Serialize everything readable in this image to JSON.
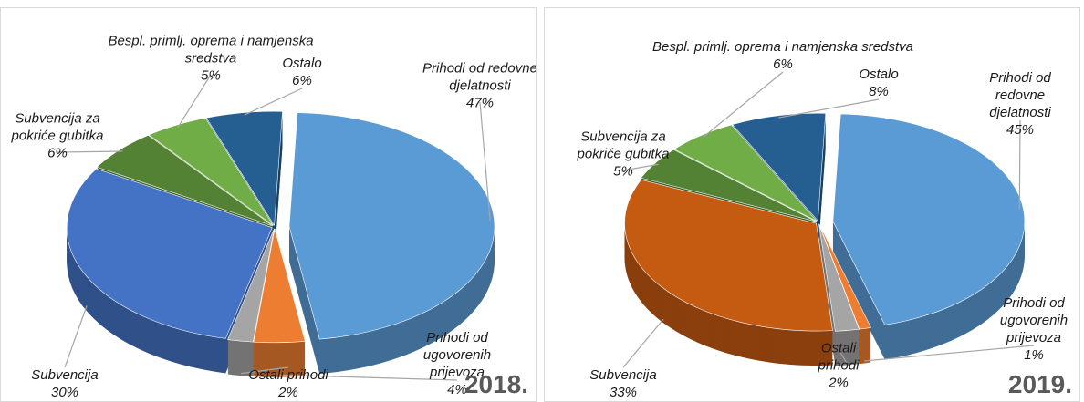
{
  "chart_data": [
    {
      "type": "pie",
      "annotation": "2018.",
      "categories": [
        "Prihodi od redovne djelatnosti",
        "Prihodi od ugovorenih prijevoza",
        "Ostali prihodi",
        "Subvencija",
        "Subvencija za pokriće gubitka",
        "Bespl. primlj. oprema i namjenska sredstva",
        "Ostalo"
      ],
      "values": [
        47,
        4,
        2,
        30,
        6,
        5,
        6
      ],
      "value_labels": [
        "47%",
        "4%",
        "2%",
        "30%",
        "6%",
        "5%",
        "6%"
      ],
      "colors": [
        "#5b9bd5",
        "#ed7d31",
        "#a5a5a5",
        "#4472c4",
        "#548235",
        "#70ad47",
        "#255e91"
      ]
    },
    {
      "type": "pie",
      "annotation": "2019.",
      "categories": [
        "Prihodi od redovne djelatnosti",
        "Prihodi od ugovorenih prijevoza",
        "Ostali prihodi",
        "Subvencija",
        "Subvencija za pokriće gubitka",
        "Bespl. primlj. oprema i namjenska sredstva",
        "Ostalo"
      ],
      "values": [
        45,
        1,
        2,
        33,
        5,
        6,
        8
      ],
      "value_labels": [
        "45%",
        "1%",
        "2%",
        "33%",
        "5%",
        "6%",
        "8%"
      ],
      "colors": [
        "#5b9bd5",
        "#ed7d31",
        "#a5a5a5",
        "#c55a11",
        "#548235",
        "#70ad47",
        "#255e91"
      ]
    }
  ]
}
